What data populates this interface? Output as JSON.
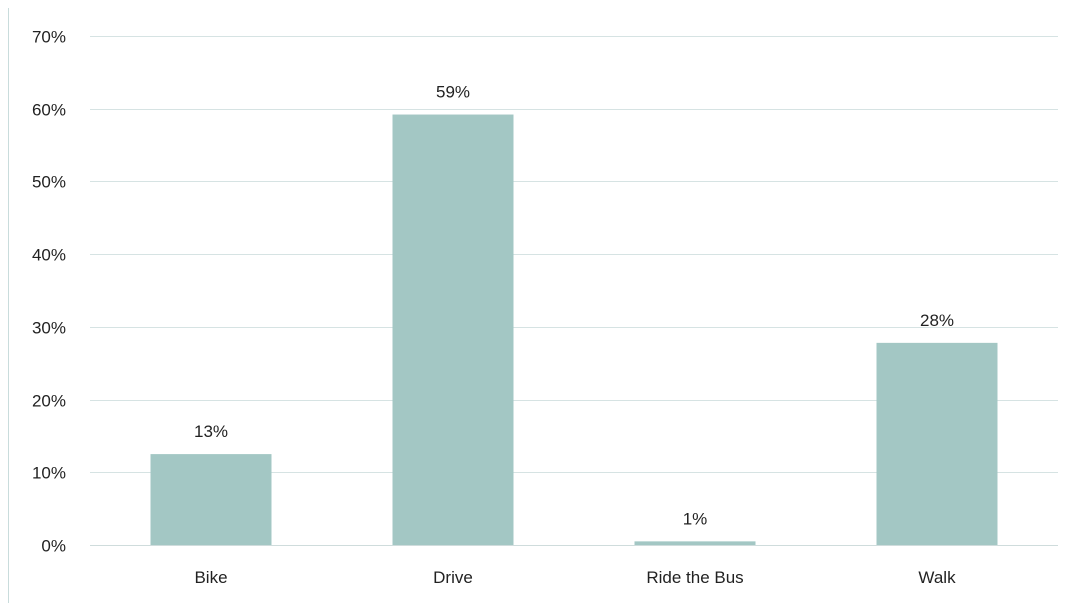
{
  "chart_data": {
    "type": "bar",
    "categories": [
      "Bike",
      "Drive",
      "Ride the Bus",
      "Walk"
    ],
    "values": [
      12.5,
      59.2,
      0.5,
      27.8
    ],
    "data_labels": [
      "13%",
      "59%",
      "1%",
      "28%"
    ],
    "y_ticks": [
      "0%",
      "10%",
      "20%",
      "30%",
      "40%",
      "50%",
      "60%",
      "70%"
    ],
    "y_tick_values": [
      0,
      10,
      20,
      30,
      40,
      50,
      60,
      70
    ],
    "ylim": [
      0,
      70
    ],
    "grid": true,
    "title": "",
    "xlabel": "",
    "ylabel": "",
    "bar_color": "#a3c7c4"
  }
}
